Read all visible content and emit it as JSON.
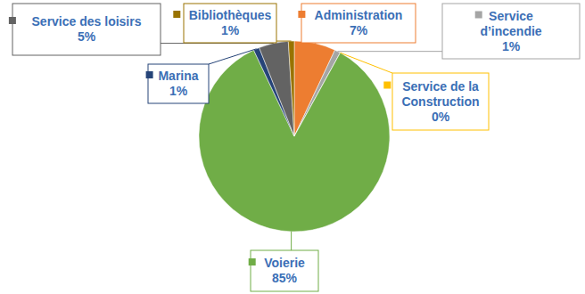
{
  "chart_data": {
    "type": "pie",
    "categories": [
      "Administration",
      "Service d’incendie",
      "Service de la Construction",
      "Voierie",
      "Marina",
      "Service des loisirs",
      "Bibliothèques"
    ],
    "values": [
      7,
      1,
      0,
      85,
      1,
      5,
      1
    ],
    "value_labels": [
      "7%",
      "1%",
      "0%",
      "85%",
      "1%",
      "5%",
      "1%"
    ],
    "colors": [
      "#ED7D31",
      "#A5A5A5",
      "#FFC000",
      "#70AD47",
      "#264478",
      "#636363",
      "#997300"
    ],
    "data_labels": true
  }
}
